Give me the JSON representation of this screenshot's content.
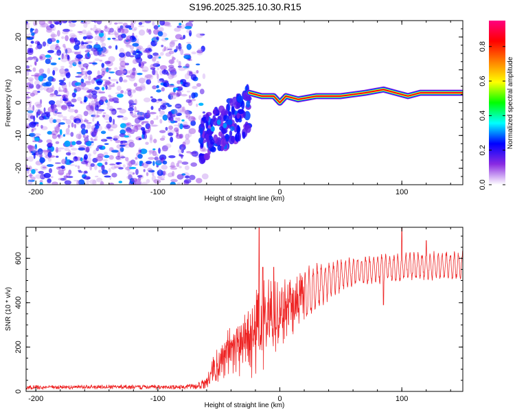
{
  "chart_data": [
    {
      "type": "heatmap",
      "title": "S196.2025.325.10.30.R15",
      "xlabel": "Height of straight line (km)",
      "ylabel": "Frequency (Hz)",
      "xlim": [
        -208,
        150
      ],
      "ylim": [
        -25,
        25
      ],
      "xticks": [
        -200,
        -100,
        0,
        100
      ],
      "yticks": [
        -20,
        -10,
        0,
        10,
        20
      ],
      "tick_labels_x": [
        "-200",
        "-100",
        "0",
        "100"
      ],
      "tick_labels_y": [
        "-20",
        "-10",
        "0",
        "10",
        "20"
      ],
      "colorbar": {
        "label": "Normalized spectral amplitude",
        "range": [
          0,
          0.95
        ],
        "ticks": [
          "0.0",
          "0.2",
          "0.4",
          "0.6",
          "0.8"
        ],
        "colors": [
          "#ffffff",
          "#8a2be2",
          "#0000ff",
          "#00ffff",
          "#00ff00",
          "#ffff00",
          "#ff8000",
          "#ff0000",
          "#ff0080"
        ]
      },
      "description_regions": [
        {
          "x_range": [
            -208,
            -60
          ],
          "frequency_range": [
            -25,
            25
          ],
          "amplitude": "noise 0.0-0.25"
        },
        {
          "x_range": [
            -65,
            -25
          ],
          "frequency_center": -7,
          "amplitude": "0.2-0.4"
        },
        {
          "x_range": [
            -25,
            150
          ],
          "frequency_center": 2,
          "amplitude": "0.6-0.95"
        }
      ],
      "ridge": {
        "x": [
          -25,
          -15,
          -5,
          0,
          5,
          15,
          30,
          50,
          70,
          85,
          95,
          105,
          115,
          150
        ],
        "y": [
          3,
          2,
          2,
          0,
          2,
          1,
          2,
          2,
          3,
          4,
          3,
          2,
          3,
          3
        ]
      }
    },
    {
      "type": "line",
      "title": "",
      "xlabel": "Height of straight line (km)",
      "ylabel": "SNR (10 * v/v)",
      "xlim": [
        -208,
        150
      ],
      "ylim": [
        0,
        740
      ],
      "xticks": [
        -200,
        -100,
        0,
        100
      ],
      "yticks": [
        0,
        200,
        400,
        600
      ],
      "tick_labels_x": [
        "-200",
        "-100",
        "0",
        "100"
      ],
      "tick_labels_y": [
        "0",
        "200",
        "400",
        "600"
      ],
      "color": "#ee2222",
      "series": [
        {
          "name": "SNR",
          "x": [
            -208,
            -150,
            -100,
            -70,
            -60,
            -50,
            -45,
            -40,
            -35,
            -30,
            -25,
            -20,
            -15,
            -10,
            -5,
            0,
            5,
            10,
            20,
            30,
            40,
            50,
            60,
            80,
            100,
            120,
            150
          ],
          "y": [
            18,
            20,
            20,
            22,
            40,
            130,
            170,
            180,
            200,
            220,
            240,
            260,
            290,
            310,
            330,
            350,
            370,
            390,
            420,
            470,
            500,
            520,
            540,
            550,
            560,
            565,
            570
          ],
          "amplitude": [
            10,
            10,
            12,
            12,
            30,
            100,
            110,
            120,
            150,
            160,
            180,
            200,
            210,
            200,
            180,
            170,
            150,
            140,
            120,
            100,
            80,
            70,
            60,
            60,
            60,
            60,
            60
          ],
          "spikes": [
            [
              -17,
              740
            ],
            [
              -14,
              560
            ],
            [
              -5,
              560
            ],
            [
              10,
              440
            ],
            [
              85,
              390
            ],
            [
              100,
              740
            ],
            [
              120,
              680
            ]
          ]
        }
      ]
    }
  ]
}
